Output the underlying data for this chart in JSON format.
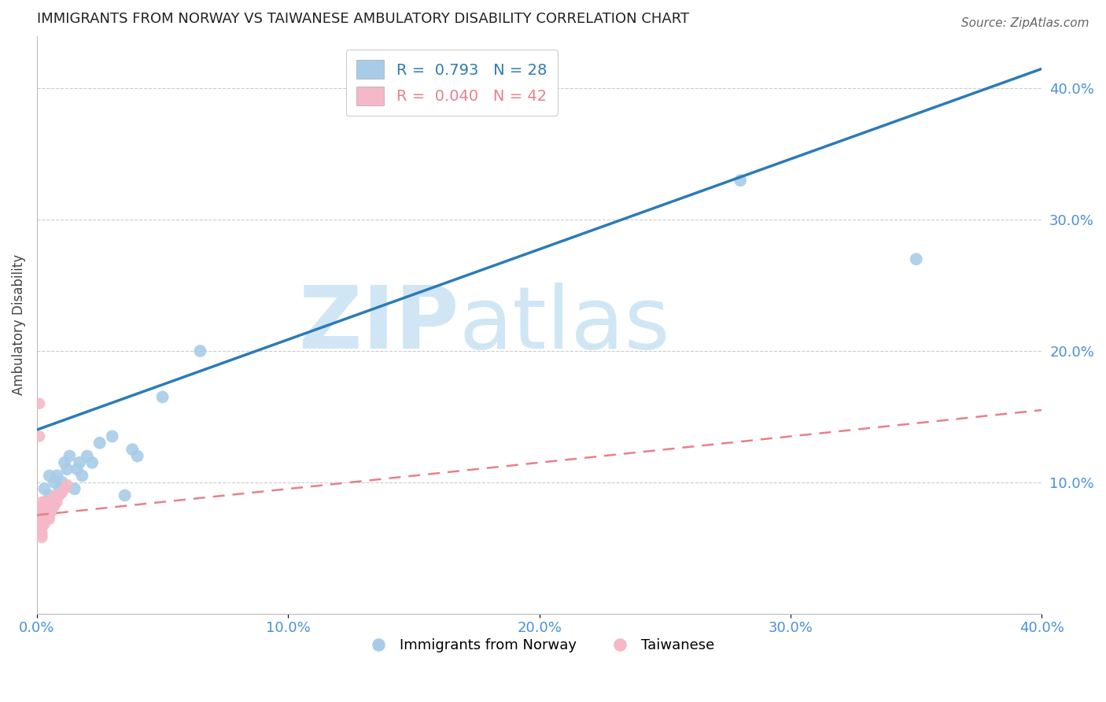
{
  "title": "IMMIGRANTS FROM NORWAY VS TAIWANESE AMBULATORY DISABILITY CORRELATION CHART",
  "source": "Source: ZipAtlas.com",
  "tick_color": "#4a90d9",
  "ylabel": "Ambulatory Disability",
  "xlim": [
    0.0,
    0.4
  ],
  "ylim": [
    0.0,
    0.44
  ],
  "xticks": [
    0.0,
    0.1,
    0.2,
    0.3,
    0.4
  ],
  "yticks_right": [
    0.1,
    0.2,
    0.3,
    0.4
  ],
  "ytick_labels_right": [
    "10.0%",
    "20.0%",
    "30.0%",
    "40.0%"
  ],
  "xtick_labels": [
    "0.0%",
    "10.0%",
    "20.0%",
    "30.0%",
    "40.0%"
  ],
  "blue_color": "#a8cce8",
  "blue_line_color": "#2c7bb6",
  "pink_color": "#f5b8c8",
  "pink_line_color": "#e8808a",
  "R_blue": 0.793,
  "N_blue": 28,
  "R_pink": 0.04,
  "N_pink": 42,
  "legend_label_blue": "Immigrants from Norway",
  "legend_label_pink": "Taiwanese",
  "watermark_zip": "ZIP",
  "watermark_atlas": "atlas",
  "watermark_color": "#d0e6f5",
  "blue_scatter_x": [
    0.002,
    0.003,
    0.004,
    0.005,
    0.005,
    0.006,
    0.007,
    0.008,
    0.009,
    0.01,
    0.011,
    0.012,
    0.013,
    0.015,
    0.016,
    0.017,
    0.018,
    0.02,
    0.022,
    0.025,
    0.03,
    0.035,
    0.038,
    0.04,
    0.05,
    0.065,
    0.28,
    0.35
  ],
  "blue_scatter_y": [
    0.075,
    0.095,
    0.08,
    0.09,
    0.105,
    0.085,
    0.1,
    0.105,
    0.095,
    0.1,
    0.115,
    0.11,
    0.12,
    0.095,
    0.11,
    0.115,
    0.105,
    0.12,
    0.115,
    0.13,
    0.135,
    0.09,
    0.125,
    0.12,
    0.165,
    0.2,
    0.33,
    0.27
  ],
  "pink_scatter_x": [
    0.001,
    0.001,
    0.001,
    0.001,
    0.001,
    0.001,
    0.002,
    0.002,
    0.002,
    0.002,
    0.002,
    0.002,
    0.002,
    0.002,
    0.002,
    0.002,
    0.003,
    0.003,
    0.003,
    0.003,
    0.003,
    0.003,
    0.004,
    0.004,
    0.004,
    0.004,
    0.005,
    0.005,
    0.005,
    0.005,
    0.005,
    0.006,
    0.006,
    0.006,
    0.007,
    0.007,
    0.008,
    0.008,
    0.009,
    0.01,
    0.011,
    0.012
  ],
  "pink_scatter_y": [
    0.16,
    0.135,
    0.08,
    0.075,
    0.07,
    0.065,
    0.085,
    0.08,
    0.078,
    0.075,
    0.07,
    0.068,
    0.065,
    0.062,
    0.06,
    0.058,
    0.085,
    0.08,
    0.078,
    0.075,
    0.072,
    0.068,
    0.082,
    0.079,
    0.075,
    0.072,
    0.085,
    0.082,
    0.079,
    0.075,
    0.072,
    0.088,
    0.082,
    0.078,
    0.088,
    0.082,
    0.09,
    0.085,
    0.09,
    0.092,
    0.095,
    0.098
  ],
  "blue_line_x": [
    0.0,
    0.4
  ],
  "blue_line_y": [
    0.14,
    0.415
  ],
  "pink_line_x": [
    0.0,
    0.4
  ],
  "pink_line_y": [
    0.075,
    0.155
  ]
}
